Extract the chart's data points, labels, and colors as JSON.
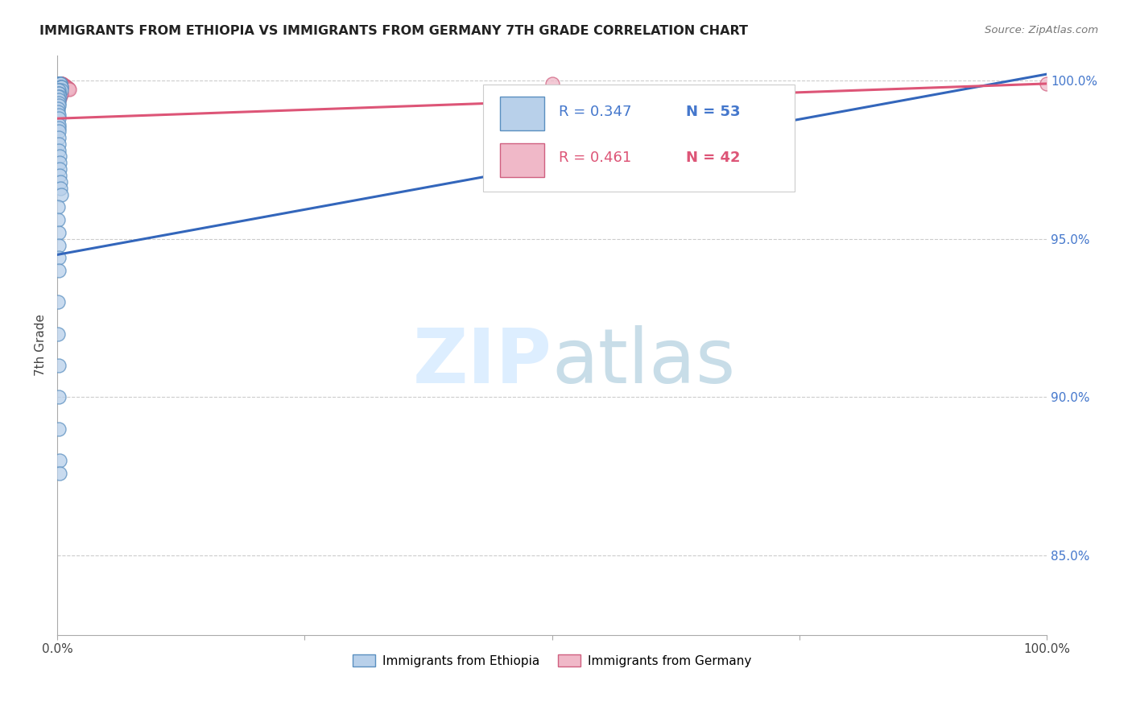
{
  "title": "IMMIGRANTS FROM ETHIOPIA VS IMMIGRANTS FROM GERMANY 7TH GRADE CORRELATION CHART",
  "source": "Source: ZipAtlas.com",
  "ylabel": "7th Grade",
  "xlim": [
    0.0,
    1.0
  ],
  "ylim": [
    0.825,
    1.008
  ],
  "yticks": [
    0.85,
    0.9,
    0.95,
    1.0
  ],
  "ytick_labels": [
    "85.0%",
    "90.0%",
    "95.0%",
    "100.0%"
  ],
  "xtick_labels": [
    "0.0%",
    "100.0%"
  ],
  "r_ethiopia": 0.347,
  "n_ethiopia": 53,
  "r_germany": 0.461,
  "n_germany": 42,
  "ethiopia_fill": "#b8d0ea",
  "ethiopia_edge": "#5a8fc0",
  "germany_fill": "#f0b8c8",
  "germany_edge": "#d06080",
  "line_ethiopia": "#3366bb",
  "line_germany": "#dd5577",
  "watermark_color": "#ddeeff",
  "ethiopia_x": [
    0.0008,
    0.001,
    0.0012,
    0.0015,
    0.0018,
    0.002,
    0.0022,
    0.0025,
    0.0028,
    0.003,
    0.0032,
    0.0035,
    0.0038,
    0.004,
    0.0008,
    0.001,
    0.0012,
    0.0015,
    0.0018,
    0.0008,
    0.001,
    0.0012,
    0.001,
    0.0008,
    0.0009,
    0.001,
    0.0011,
    0.0012,
    0.0013,
    0.0014,
    0.0015,
    0.0016,
    0.0017,
    0.0018,
    0.002,
    0.0022,
    0.0025,
    0.0028,
    0.003,
    0.0035,
    0.0008,
    0.0009,
    0.001,
    0.0011,
    0.0012,
    0.0013,
    0.0008,
    0.0009,
    0.001,
    0.0012,
    0.0015,
    0.0018,
    0.002
  ],
  "ethiopia_y": [
    0.999,
    0.999,
    0.999,
    0.999,
    0.999,
    0.999,
    0.999,
    0.999,
    0.999,
    0.999,
    0.998,
    0.998,
    0.998,
    0.997,
    0.997,
    0.997,
    0.996,
    0.996,
    0.995,
    0.995,
    0.994,
    0.993,
    0.992,
    0.991,
    0.99,
    0.989,
    0.988,
    0.986,
    0.985,
    0.984,
    0.982,
    0.98,
    0.978,
    0.976,
    0.974,
    0.972,
    0.97,
    0.968,
    0.966,
    0.964,
    0.96,
    0.956,
    0.952,
    0.948,
    0.944,
    0.94,
    0.93,
    0.92,
    0.91,
    0.9,
    0.89,
    0.88,
    0.876
  ],
  "germany_x": [
    0.0008,
    0.001,
    0.0012,
    0.0015,
    0.0018,
    0.002,
    0.0022,
    0.0025,
    0.0028,
    0.003,
    0.0035,
    0.004,
    0.0045,
    0.005,
    0.0055,
    0.006,
    0.0065,
    0.007,
    0.0075,
    0.008,
    0.0085,
    0.009,
    0.01,
    0.011,
    0.012,
    0.0008,
    0.001,
    0.0012,
    0.0015,
    0.002,
    0.0025,
    0.003,
    0.0035,
    0.0008,
    0.0009,
    0.001,
    0.0012,
    0.0015,
    0.0018,
    0.0006,
    0.5,
    1.0
  ],
  "germany_y": [
    0.9985,
    0.9988,
    0.999,
    0.999,
    0.999,
    0.999,
    0.999,
    0.999,
    0.999,
    0.999,
    0.999,
    0.999,
    0.999,
    0.999,
    0.9988,
    0.9986,
    0.9985,
    0.9984,
    0.9983,
    0.9982,
    0.998,
    0.9978,
    0.9976,
    0.9974,
    0.9972,
    0.997,
    0.9968,
    0.9966,
    0.9964,
    0.9962,
    0.996,
    0.9958,
    0.9956,
    0.9954,
    0.9952,
    0.995,
    0.9948,
    0.9946,
    0.9944,
    0.9942,
    0.999,
    0.999
  ],
  "eth_line_x0": 0.0,
  "eth_line_y0": 0.945,
  "eth_line_x1": 1.0,
  "eth_line_y1": 1.002,
  "ger_line_x0": 0.0,
  "ger_line_y0": 0.988,
  "ger_line_x1": 1.0,
  "ger_line_y1": 0.999
}
